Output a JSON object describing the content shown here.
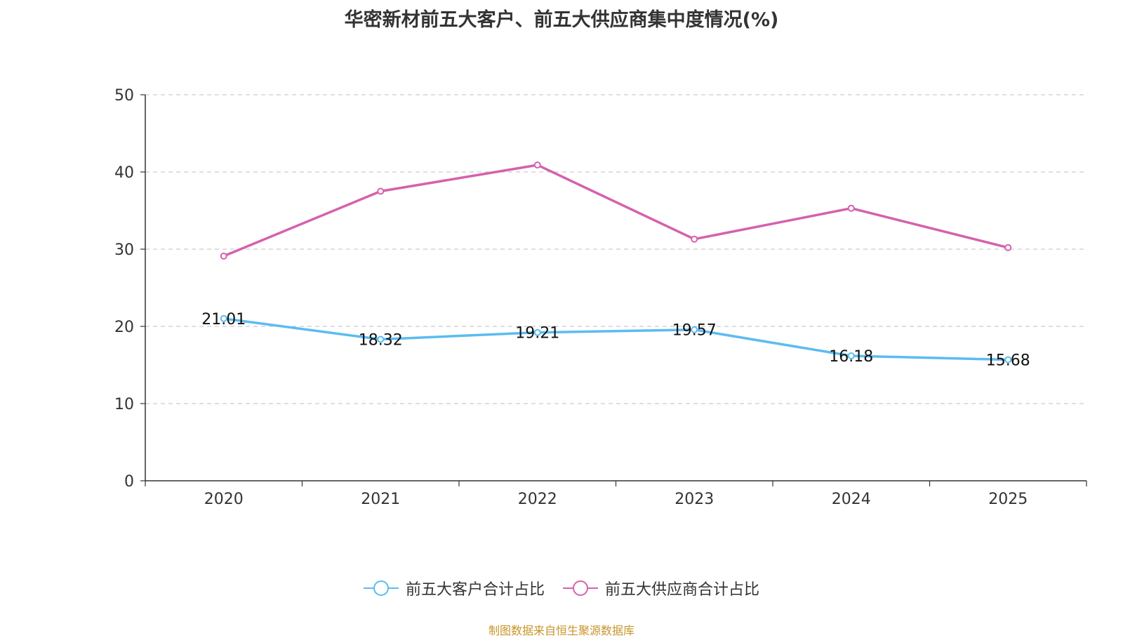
{
  "chart_data": {
    "type": "line",
    "title": "华密新材前五大客户、前五大供应商集中度情况(%)",
    "x": [
      "2020",
      "2021",
      "2022",
      "2023",
      "2024",
      "2025"
    ],
    "ylim": [
      0,
      50
    ],
    "yticks": [
      0,
      10,
      20,
      30,
      40,
      50
    ],
    "grid": true,
    "legend_position": "bottom",
    "series": [
      {
        "name": "前五大客户合计占比",
        "color": "#5bbcf0",
        "values": [
          21.01,
          18.32,
          19.21,
          19.57,
          16.18,
          15.68
        ],
        "labels": [
          "21.01",
          "18.32",
          "19.21",
          "19.57",
          "16.18",
          "15.68"
        ],
        "show_labels": true
      },
      {
        "name": "前五大供应商合计占比",
        "color": "#d462ad",
        "values": [
          29.1,
          37.5,
          40.9,
          31.3,
          35.3,
          30.2
        ],
        "show_labels": false
      }
    ]
  },
  "source_note": "制图数据来自恒生聚源数据库"
}
